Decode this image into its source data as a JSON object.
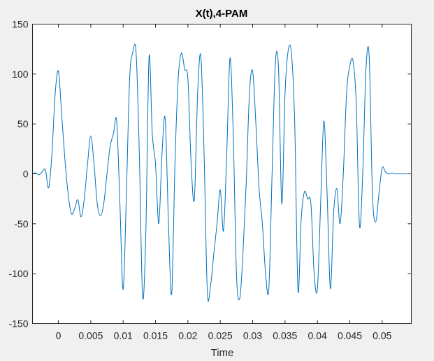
{
  "chart_data": {
    "type": "line",
    "title": "X(t),4-PAM",
    "xlabel": "Time",
    "ylabel": "",
    "xlim": [
      -0.004,
      0.0545
    ],
    "ylim": [
      -150,
      150
    ],
    "x_ticks": [
      0,
      0.005,
      0.01,
      0.015,
      0.02,
      0.025,
      0.03,
      0.035,
      0.04,
      0.045,
      0.05
    ],
    "x_tick_labels": [
      "0",
      "0.005",
      "0.01",
      "0.015",
      "0.02",
      "0.025",
      "0.03",
      "0.035",
      "0.04",
      "0.045",
      "0.05"
    ],
    "y_ticks": [
      -150,
      -100,
      -50,
      0,
      50,
      100,
      150
    ],
    "y_tick_labels": [
      "-150",
      "-100",
      "-50",
      "0",
      "50",
      "100",
      "150"
    ],
    "grid": false,
    "series": [
      {
        "color": "#0072bd",
        "x": [
          -0.004,
          -0.0035,
          -0.003,
          -0.0025,
          -0.002,
          -0.0015,
          -0.001,
          -0.0005,
          0,
          0.0005,
          0.001,
          0.0015,
          0.002,
          0.0025,
          0.003,
          0.0035,
          0.004,
          0.0045,
          0.005,
          0.0055,
          0.006,
          0.0065,
          0.007,
          0.0075,
          0.008,
          0.0085,
          0.009,
          0.0095,
          0.01,
          0.0105,
          0.011,
          0.0115,
          0.012,
          0.0125,
          0.013,
          0.0135,
          0.014,
          0.0145,
          0.015,
          0.0155,
          0.016,
          0.0165,
          0.017,
          0.0175,
          0.018,
          0.0185,
          0.019,
          0.0195,
          0.02,
          0.0205,
          0.021,
          0.0215,
          0.022,
          0.0225,
          0.023,
          0.0235,
          0.024,
          0.0245,
          0.025,
          0.0255,
          0.026,
          0.0265,
          0.027,
          0.0275,
          0.028,
          0.0285,
          0.029,
          0.0295,
          0.03,
          0.0305,
          0.031,
          0.0315,
          0.032,
          0.0325,
          0.033,
          0.0335,
          0.034,
          0.0345,
          0.035,
          0.0355,
          0.036,
          0.0365,
          0.037,
          0.0375,
          0.038,
          0.0385,
          0.039,
          0.0395,
          0.04,
          0.0405,
          0.041,
          0.0415,
          0.042,
          0.0425,
          0.043,
          0.0435,
          0.044,
          0.0445,
          0.045,
          0.0455,
          0.046,
          0.0465,
          0.047,
          0.0475,
          0.048,
          0.0485,
          0.049,
          0.0495,
          0.05,
          0.0505,
          0.051,
          0.0515,
          0.052,
          0.0525,
          0.053,
          0.0535,
          0.054,
          0.0545
        ],
        "y": [
          0,
          1,
          -1,
          2,
          4,
          -14,
          20,
          80,
          103,
          60,
          15,
          -20,
          -40,
          -35,
          -26,
          -43,
          -25,
          10,
          38,
          10,
          -30,
          -42,
          -30,
          0,
          28,
          40,
          53,
          -30,
          -116,
          -20,
          95,
          122,
          121,
          20,
          -123,
          -60,
          117,
          40,
          10,
          -50,
          20,
          55,
          -50,
          -120,
          10,
          95,
          121,
          105,
          95,
          10,
          -25,
          80,
          118,
          20,
          -118,
          -112,
          -80,
          -50,
          -16,
          -57,
          20,
          116,
          40,
          -100,
          -125,
          -80,
          -10,
          80,
          103,
          50,
          -15,
          -50,
          -100,
          -115,
          0,
          110,
          105,
          -30,
          80,
          124,
          120,
          50,
          -117,
          -45,
          -18,
          -25,
          -30,
          -100,
          -115,
          -30,
          53,
          -20,
          -115,
          -40,
          -15,
          -50,
          0,
          80,
          108,
          113,
          70,
          -52,
          0,
          105,
          117,
          -20,
          -48,
          -20,
          6,
          2,
          0,
          1,
          0,
          0,
          0,
          0,
          0,
          0
        ]
      }
    ]
  }
}
